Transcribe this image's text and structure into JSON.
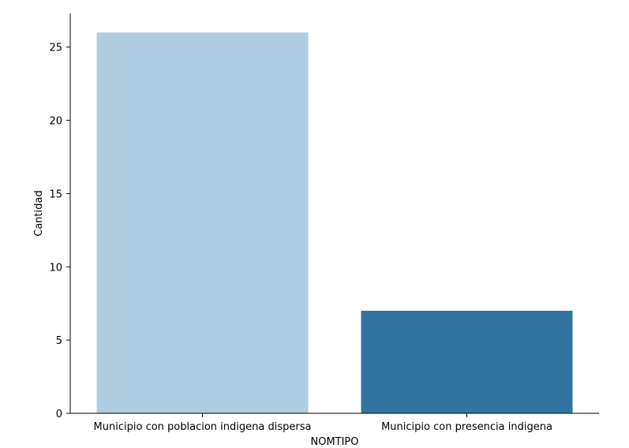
{
  "chart_data": {
    "type": "bar",
    "title": "",
    "xlabel": "NOMTIPO",
    "ylabel": "Cantidad",
    "categories": [
      "Municipio con poblacion indigena dispersa",
      "Municipio con presencia indigena"
    ],
    "values": [
      26,
      7
    ],
    "bar_colors": [
      "#aecde1",
      "#3274a1"
    ],
    "ylim": [
      0,
      27.3
    ],
    "yticks": [
      0,
      5,
      10,
      15,
      20,
      25
    ],
    "grid": false,
    "legend": "none"
  }
}
